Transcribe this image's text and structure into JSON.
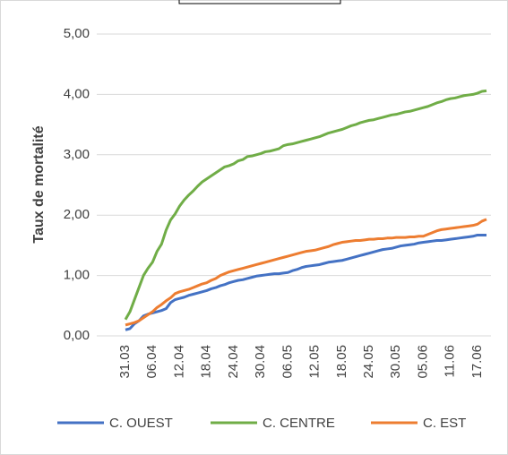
{
  "chart_data": {
    "type": "line",
    "y_label": "Taux de mortalité",
    "ylim": [
      0,
      5
    ],
    "yticks": [
      {
        "value": 0,
        "label": "0,00"
      },
      {
        "value": 1,
        "label": "1,00"
      },
      {
        "value": 2,
        "label": "2,00"
      },
      {
        "value": 3,
        "label": "3,00"
      },
      {
        "value": 4,
        "label": "4,00"
      },
      {
        "value": 5,
        "label": "5,00"
      }
    ],
    "grid": true,
    "legend": "bottom",
    "categories": [
      "31.03",
      null,
      null,
      null,
      null,
      null,
      "06.04",
      null,
      null,
      null,
      null,
      null,
      "12.04",
      null,
      null,
      null,
      null,
      null,
      "18.04",
      null,
      null,
      null,
      null,
      null,
      "24.04",
      null,
      null,
      null,
      null,
      null,
      "30.04",
      null,
      null,
      null,
      null,
      null,
      "06.05",
      null,
      null,
      null,
      null,
      null,
      "12.05",
      null,
      null,
      null,
      null,
      null,
      "18.05",
      null,
      null,
      null,
      null,
      null,
      "24.05",
      null,
      null,
      null,
      null,
      null,
      "30.05",
      null,
      null,
      null,
      null,
      null,
      "05.06",
      null,
      null,
      null,
      null,
      null,
      "11.06",
      null,
      null,
      null,
      null,
      null,
      "17.06",
      null,
      null
    ],
    "series": [
      {
        "name": "C. OUEST",
        "color": "#4472c4",
        "values": [
          0.1,
          0.12,
          0.2,
          0.25,
          0.33,
          0.36,
          0.38,
          0.4,
          0.42,
          0.45,
          0.55,
          0.6,
          0.62,
          0.64,
          0.67,
          0.69,
          0.71,
          0.73,
          0.75,
          0.78,
          0.8,
          0.83,
          0.85,
          0.88,
          0.9,
          0.92,
          0.93,
          0.95,
          0.97,
          0.99,
          1.0,
          1.01,
          1.02,
          1.03,
          1.03,
          1.04,
          1.05,
          1.08,
          1.1,
          1.13,
          1.15,
          1.16,
          1.17,
          1.18,
          1.2,
          1.22,
          1.23,
          1.24,
          1.25,
          1.27,
          1.29,
          1.31,
          1.33,
          1.35,
          1.37,
          1.39,
          1.41,
          1.43,
          1.44,
          1.45,
          1.47,
          1.49,
          1.5,
          1.51,
          1.52,
          1.54,
          1.55,
          1.56,
          1.57,
          1.58,
          1.58,
          1.59,
          1.6,
          1.61,
          1.62,
          1.63,
          1.64,
          1.65,
          1.67,
          1.67,
          1.67
        ]
      },
      {
        "name": "C. CENTRE",
        "color": "#70ad47",
        "values": [
          0.27,
          0.4,
          0.6,
          0.8,
          1.0,
          1.12,
          1.22,
          1.4,
          1.52,
          1.75,
          1.92,
          2.02,
          2.15,
          2.25,
          2.33,
          2.4,
          2.48,
          2.55,
          2.6,
          2.65,
          2.7,
          2.75,
          2.8,
          2.82,
          2.85,
          2.9,
          2.92,
          2.97,
          2.98,
          3.0,
          3.02,
          3.05,
          3.06,
          3.08,
          3.1,
          3.15,
          3.17,
          3.18,
          3.2,
          3.22,
          3.24,
          3.26,
          3.28,
          3.3,
          3.33,
          3.36,
          3.38,
          3.4,
          3.42,
          3.45,
          3.48,
          3.5,
          3.53,
          3.55,
          3.57,
          3.58,
          3.6,
          3.62,
          3.64,
          3.66,
          3.67,
          3.69,
          3.71,
          3.72,
          3.74,
          3.76,
          3.78,
          3.8,
          3.83,
          3.86,
          3.88,
          3.91,
          3.93,
          3.94,
          3.96,
          3.98,
          3.99,
          4.0,
          4.02,
          4.05,
          4.06
        ]
      },
      {
        "name": "C. EST",
        "color": "#ed7d31",
        "values": [
          0.18,
          0.2,
          0.22,
          0.25,
          0.3,
          0.35,
          0.4,
          0.47,
          0.52,
          0.58,
          0.63,
          0.7,
          0.73,
          0.75,
          0.77,
          0.8,
          0.83,
          0.86,
          0.88,
          0.92,
          0.95,
          1.0,
          1.03,
          1.06,
          1.08,
          1.1,
          1.12,
          1.14,
          1.16,
          1.18,
          1.2,
          1.22,
          1.24,
          1.26,
          1.28,
          1.3,
          1.32,
          1.34,
          1.36,
          1.38,
          1.4,
          1.41,
          1.42,
          1.44,
          1.46,
          1.48,
          1.51,
          1.53,
          1.55,
          1.56,
          1.57,
          1.58,
          1.58,
          1.59,
          1.6,
          1.6,
          1.61,
          1.61,
          1.62,
          1.62,
          1.63,
          1.63,
          1.63,
          1.64,
          1.64,
          1.65,
          1.65,
          1.68,
          1.71,
          1.74,
          1.76,
          1.77,
          1.78,
          1.79,
          1.8,
          1.81,
          1.82,
          1.83,
          1.85,
          1.9,
          1.93
        ]
      }
    ]
  }
}
